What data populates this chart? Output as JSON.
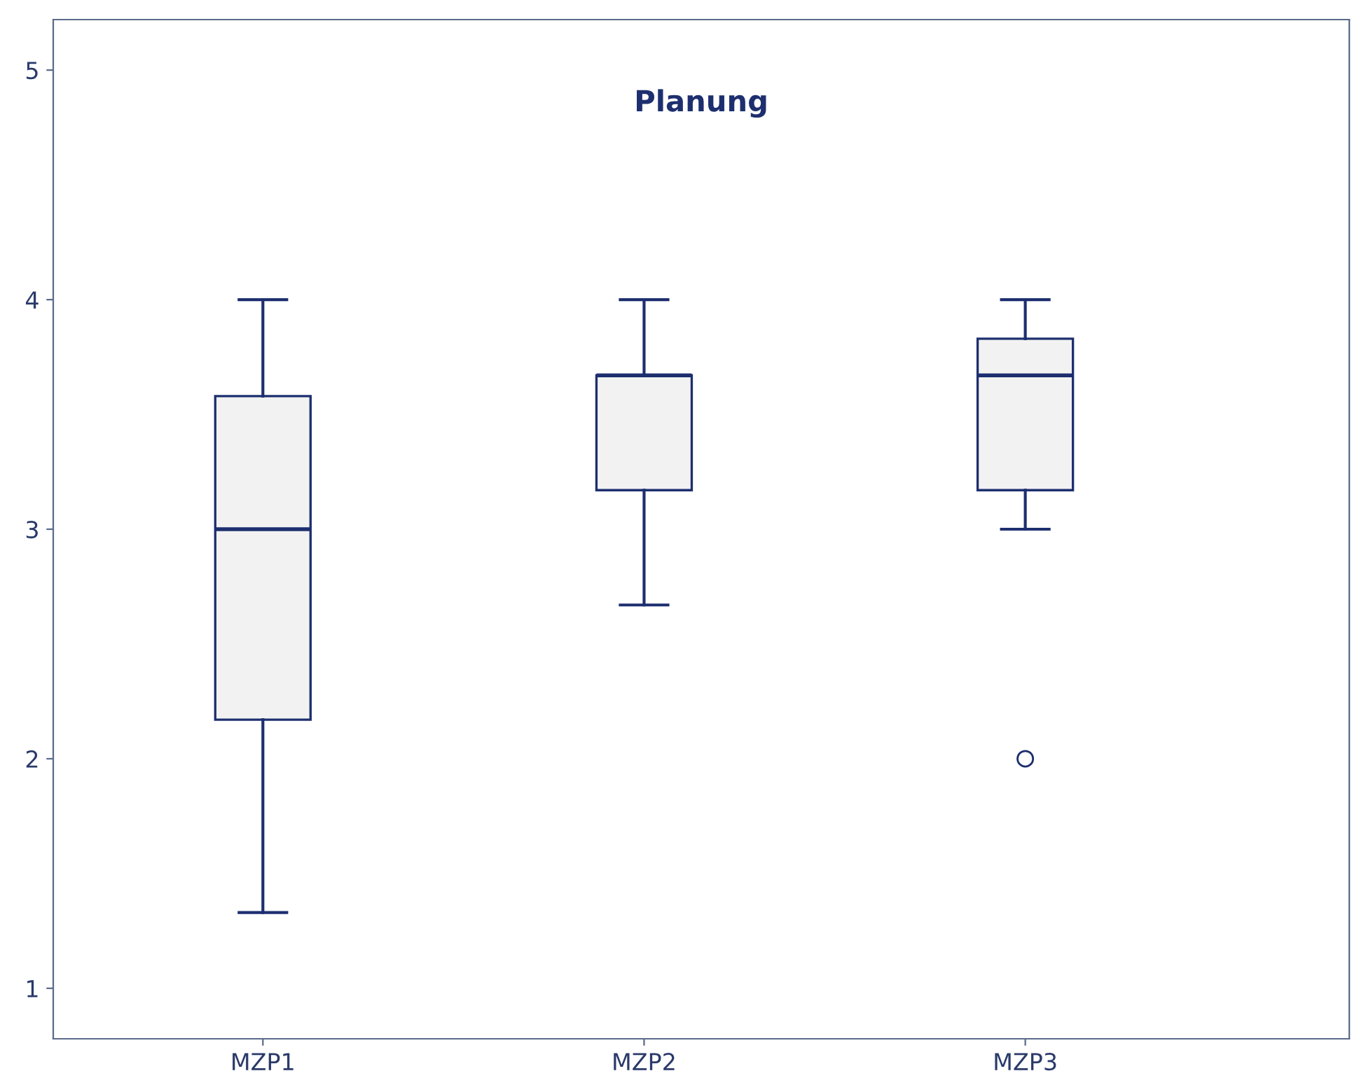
{
  "chart_data": {
    "type": "box",
    "title": "Planung",
    "categories": [
      "MZP1",
      "MZP2",
      "MZP3"
    ],
    "boxes": [
      {
        "low": 1.33,
        "q1": 2.17,
        "median": 3.0,
        "q3": 3.58,
        "high": 4.0
      },
      {
        "low": 2.67,
        "q1": 3.17,
        "median": 3.67,
        "q3": 3.67,
        "high": 4.0
      },
      {
        "low": 3.0,
        "q1": 3.17,
        "median": 3.67,
        "q3": 3.83,
        "high": 4.0,
        "outliers": [
          2.0
        ]
      }
    ],
    "color": "#f2f2f2",
    "ylim": [
      0.78,
      5.22
    ],
    "yticks": [
      1,
      2,
      3,
      4,
      5
    ],
    "grid": false,
    "legend": false
  }
}
